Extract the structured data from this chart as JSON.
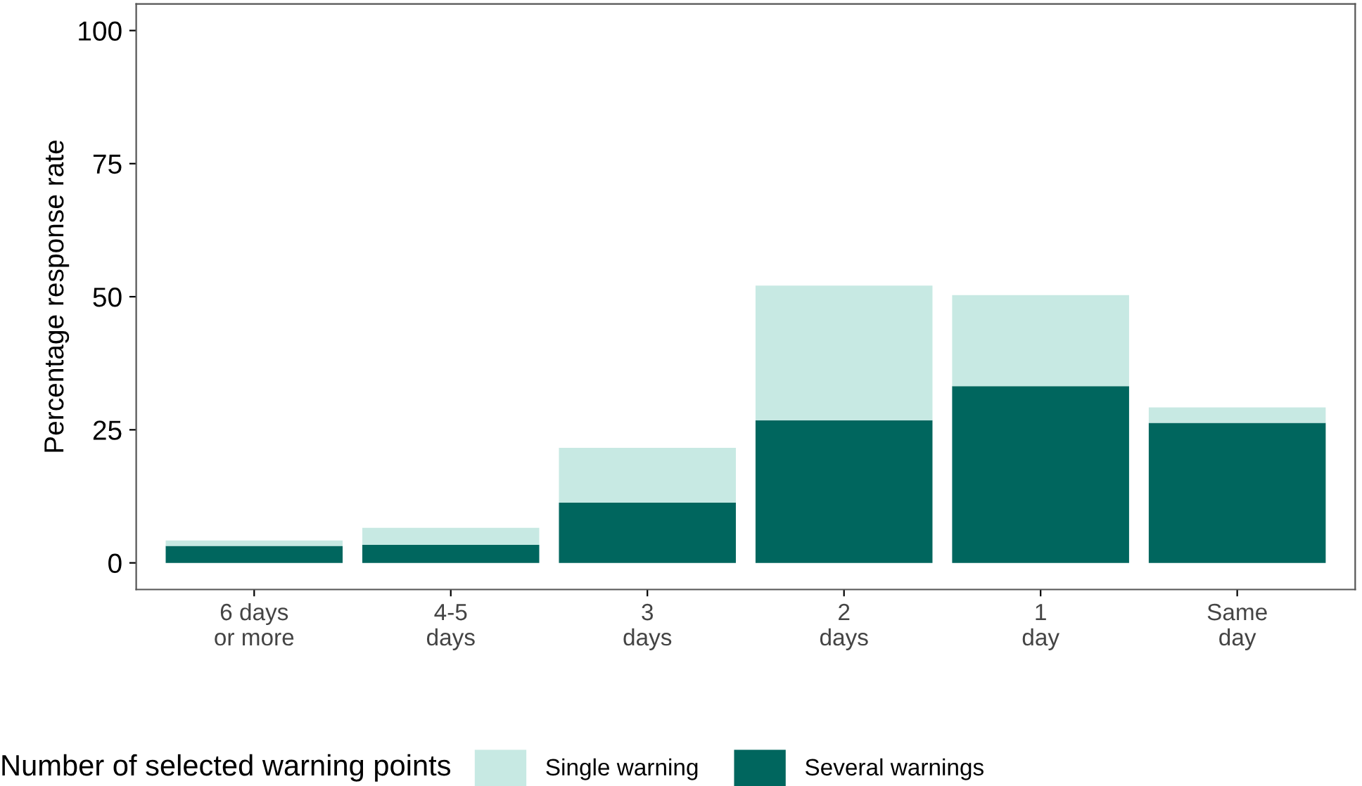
{
  "chart_data": {
    "type": "bar",
    "stacked": true,
    "ylabel": "Percentage response rate",
    "legend_title": "Number of selected warning points",
    "categories": [
      "6 days\nor more",
      "4-5\ndays",
      "3\ndays",
      "2\ndays",
      "1\nday",
      "Same\nday"
    ],
    "series": [
      {
        "name": "Several warnings",
        "color": "#00665e",
        "values": [
          3.2,
          3.4,
          11.3,
          26.8,
          33.2,
          26.3
        ]
      },
      {
        "name": "Single warning",
        "color": "#c7e9e3",
        "values": [
          1.0,
          3.2,
          10.3,
          25.3,
          17.1,
          2.9
        ]
      }
    ],
    "ylim": [
      -5,
      105
    ],
    "yticks": [
      0,
      25,
      50,
      75,
      100
    ],
    "grid": false,
    "legend": "bottom"
  }
}
